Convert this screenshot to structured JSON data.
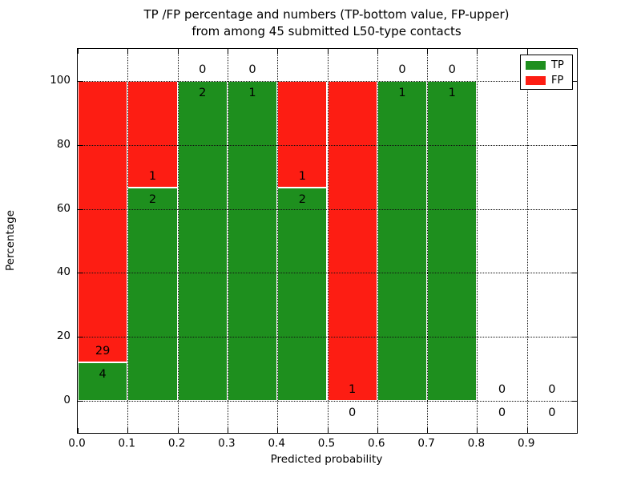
{
  "chart_data": {
    "type": "bar",
    "stacked": true,
    "title_line1": "TP /FP percentage and numbers (TP-bottom value, FP-upper)",
    "title_line2": "from among 45 submitted L50-type contacts",
    "xlabel": "Predicted probability",
    "ylabel": "Percentage",
    "xlim": [
      0.0,
      1.0
    ],
    "ylim": [
      -10,
      110
    ],
    "xticks": [
      "0.0",
      "0.1",
      "0.2",
      "0.3",
      "0.4",
      "0.5",
      "0.6",
      "0.7",
      "0.8",
      "0.9"
    ],
    "yticks": [
      0,
      20,
      40,
      60,
      80,
      100
    ],
    "grid": true,
    "legend_position": "upper right",
    "total_contacts": 45,
    "tp_color": "#1e8f1e",
    "fp_color": "#fd1d13",
    "bins": [
      {
        "range": "0.0-0.1",
        "tp_count": 4,
        "fp_count": 29,
        "tp_pct": 12.12,
        "fp_pct": 87.88
      },
      {
        "range": "0.1-0.2",
        "tp_count": 2,
        "fp_count": 1,
        "tp_pct": 66.67,
        "fp_pct": 33.33
      },
      {
        "range": "0.2-0.3",
        "tp_count": 2,
        "fp_count": 0,
        "tp_pct": 100,
        "fp_pct": 0
      },
      {
        "range": "0.3-0.4",
        "tp_count": 1,
        "fp_count": 0,
        "tp_pct": 100,
        "fp_pct": 0
      },
      {
        "range": "0.4-0.5",
        "tp_count": 2,
        "fp_count": 1,
        "tp_pct": 66.67,
        "fp_pct": 33.33
      },
      {
        "range": "0.5-0.6",
        "tp_count": 0,
        "fp_count": 1,
        "tp_pct": 0,
        "fp_pct": 100
      },
      {
        "range": "0.6-0.7",
        "tp_count": 1,
        "fp_count": 0,
        "tp_pct": 100,
        "fp_pct": 0
      },
      {
        "range": "0.7-0.8",
        "tp_count": 1,
        "fp_count": 0,
        "tp_pct": 100,
        "fp_pct": 0
      },
      {
        "range": "0.8-0.9",
        "tp_count": 0,
        "fp_count": 0,
        "tp_pct": 0,
        "fp_pct": 0
      },
      {
        "range": "0.9-1.0",
        "tp_count": 0,
        "fp_count": 0,
        "tp_pct": 0,
        "fp_pct": 0
      }
    ],
    "legend": [
      {
        "label": "TP",
        "color": "#1e8f1e"
      },
      {
        "label": "FP",
        "color": "#fd1d13"
      }
    ]
  }
}
